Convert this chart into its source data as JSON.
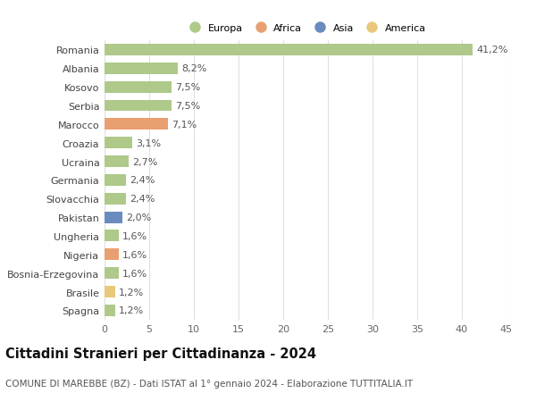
{
  "categories": [
    "Spagna",
    "Brasile",
    "Bosnia-Erzegovina",
    "Nigeria",
    "Ungheria",
    "Pakistan",
    "Slovacchia",
    "Germania",
    "Ucraina",
    "Croazia",
    "Marocco",
    "Serbia",
    "Kosovo",
    "Albania",
    "Romania"
  ],
  "values": [
    1.2,
    1.2,
    1.6,
    1.6,
    1.6,
    2.0,
    2.4,
    2.4,
    2.7,
    3.1,
    7.1,
    7.5,
    7.5,
    8.2,
    41.2
  ],
  "labels": [
    "1,2%",
    "1,2%",
    "1,6%",
    "1,6%",
    "1,6%",
    "2,0%",
    "2,4%",
    "2,4%",
    "2,7%",
    "3,1%",
    "7,1%",
    "7,5%",
    "7,5%",
    "8,2%",
    "41,2%"
  ],
  "colors": [
    "#aec98a",
    "#e8c87a",
    "#aec98a",
    "#e8a070",
    "#aec98a",
    "#6a8bbf",
    "#aec98a",
    "#aec98a",
    "#aec98a",
    "#aec98a",
    "#e8a070",
    "#aec98a",
    "#aec98a",
    "#aec98a",
    "#aec98a"
  ],
  "legend": [
    {
      "label": "Europa",
      "color": "#aec98a"
    },
    {
      "label": "Africa",
      "color": "#e8a070"
    },
    {
      "label": "Asia",
      "color": "#6a8bbf"
    },
    {
      "label": "America",
      "color": "#e8c87a"
    }
  ],
  "title": "Cittadini Stranieri per Cittadinanza - 2024",
  "subtitle": "COMUNE DI MAREBBE (BZ) - Dati ISTAT al 1° gennaio 2024 - Elaborazione TUTTITALIA.IT",
  "xlim": [
    0,
    45
  ],
  "xticks": [
    0,
    5,
    10,
    15,
    20,
    25,
    30,
    35,
    40,
    45
  ],
  "bar_height": 0.62,
  "background_color": "#ffffff",
  "grid_color": "#e0e0e0",
  "label_fontsize": 8.0,
  "tick_fontsize": 8.0,
  "title_fontsize": 10.5,
  "subtitle_fontsize": 7.5
}
